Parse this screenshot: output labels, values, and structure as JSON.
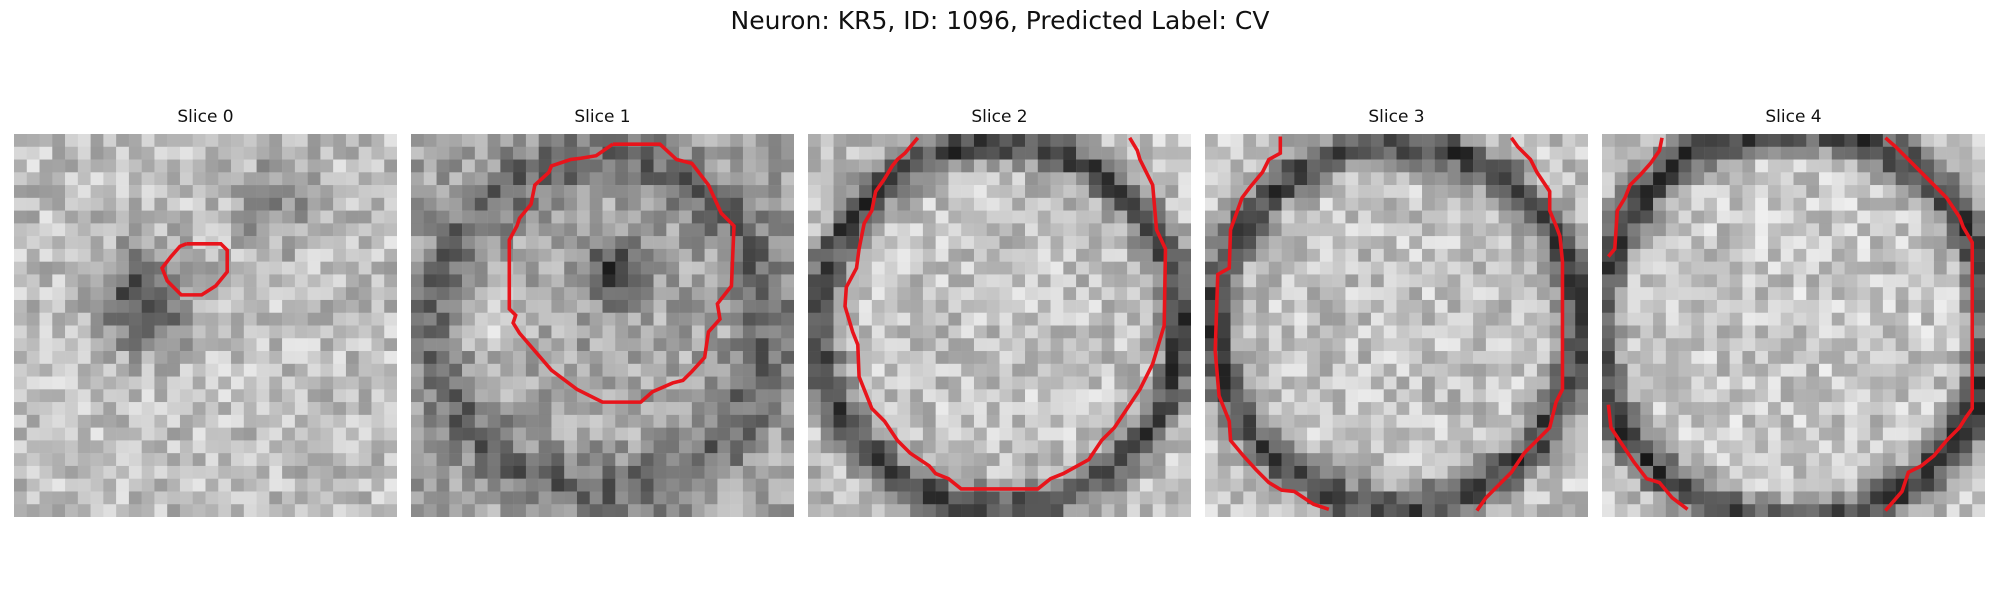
{
  "figure": {
    "title": "Neuron: KR5, ID: 1096, Predicted Label: CV"
  },
  "panels": [
    {
      "title": "Slice 0",
      "seed": 11,
      "pattern": "blob"
    },
    {
      "title": "Slice 1",
      "seed": 23,
      "pattern": "ring_dark"
    },
    {
      "title": "Slice 2",
      "seed": 37,
      "pattern": "ring"
    },
    {
      "title": "Slice 3",
      "seed": 41,
      "pattern": "ring"
    },
    {
      "title": "Slice 4",
      "seed": 53,
      "pattern": "ring_edge"
    }
  ],
  "colors": {
    "contour": "#e8141b"
  },
  "colormap": "gray"
}
